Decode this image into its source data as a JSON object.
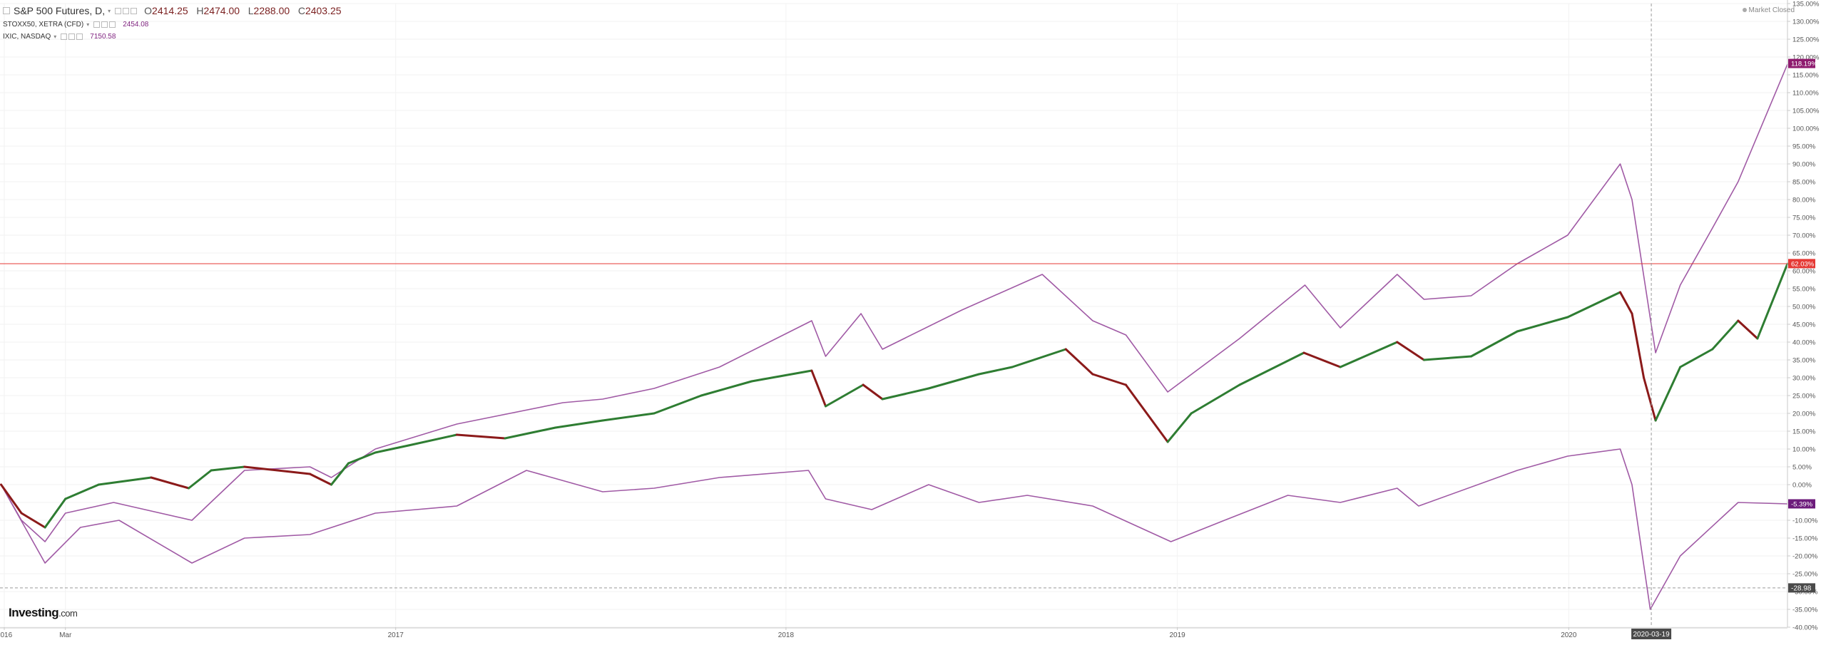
{
  "legend": {
    "main": {
      "symbol": "S&P 500 Futures, D,",
      "o_label": "O",
      "o": "2414.25",
      "h_label": "H",
      "h": "2474.00",
      "l_label": "L",
      "l": "2288.00",
      "c_label": "C",
      "c": "2403.25"
    },
    "compare": [
      {
        "symbol": "STOXX50, XETRA (CFD)",
        "value": "2454.08"
      },
      {
        "symbol": "IXIC, NASDAQ",
        "value": "7150.58"
      }
    ]
  },
  "market_status": "Market Closed",
  "logo": {
    "brand": "Investing",
    "suffix": ".com"
  },
  "crosshair": {
    "date_label": "2020-03-19",
    "value_label": "-28.98"
  },
  "colors": {
    "background": "#ffffff",
    "candle_up": "#2e7d32",
    "candle_down": "#8b1a1a",
    "compare_line": "#a05aa5",
    "price_line": "#e53935",
    "label_nasdaq": "#8e1a6e",
    "label_spx": "#e53935",
    "label_stoxx": "#6d1b7b",
    "crosshair": "#999999"
  },
  "chart_data": {
    "type": "line",
    "y_scale": "percent",
    "ylim": [
      -40,
      135
    ],
    "y_ticks": [
      135,
      130,
      125,
      120,
      115,
      110,
      105,
      100,
      95,
      90,
      85,
      80,
      75,
      70,
      65,
      60,
      55,
      50,
      45,
      40,
      35,
      30,
      25,
      20,
      15,
      10,
      5,
      0,
      -5,
      -10,
      -15,
      -20,
      -25,
      -30,
      -35,
      -40
    ],
    "x_ticks": [
      {
        "label": "2016",
        "date": "2016-01-04"
      },
      {
        "label": "Mar",
        "date": "2016-03-01"
      },
      {
        "label": "2017",
        "date": "2017-01-03"
      },
      {
        "label": "2018",
        "date": "2018-01-02"
      },
      {
        "label": "2019",
        "date": "2019-01-02"
      },
      {
        "label": "2020",
        "date": "2020-01-02"
      }
    ],
    "xlim": [
      "2015-12-31",
      "2020-07-24"
    ],
    "last_value_labels": [
      {
        "series": "IXIC, NASDAQ",
        "text": "118.19%",
        "value": 118.19
      },
      {
        "series": "S&P 500 Futures",
        "text": "62.03%",
        "value": 62.03
      },
      {
        "series": "STOXX50, XETRA (CFD)",
        "text": "-5.39%",
        "value": -5.39
      }
    ],
    "series": [
      {
        "name": "S&P 500 Futures",
        "style": "candlestick",
        "x": [
          "2016-01-01",
          "2016-01-20",
          "2016-02-11",
          "2016-03-01",
          "2016-04-01",
          "2016-05-20",
          "2016-06-24",
          "2016-07-15",
          "2016-08-15",
          "2016-09-15",
          "2016-10-15",
          "2016-11-04",
          "2016-11-20",
          "2016-12-15",
          "2017-01-15",
          "2017-03-01",
          "2017-04-15",
          "2017-06-01",
          "2017-07-15",
          "2017-09-01",
          "2017-10-15",
          "2017-12-01",
          "2018-01-26",
          "2018-02-08",
          "2018-03-15",
          "2018-04-02",
          "2018-05-15",
          "2018-07-01",
          "2018-08-01",
          "2018-09-20",
          "2018-10-15",
          "2018-11-15",
          "2018-12-24",
          "2019-01-15",
          "2019-03-01",
          "2019-04-30",
          "2019-06-03",
          "2019-07-26",
          "2019-08-20",
          "2019-10-03",
          "2019-11-15",
          "2020-01-01",
          "2020-02-19",
          "2020-03-01",
          "2020-03-12",
          "2020-03-23",
          "2020-04-15",
          "2020-05-15",
          "2020-06-08",
          "2020-06-26",
          "2020-07-24"
        ],
        "y": [
          0,
          -8,
          -12,
          -4,
          0,
          2,
          -1,
          4,
          5,
          4,
          3,
          0,
          6,
          9,
          11,
          14,
          13,
          16,
          18,
          20,
          25,
          29,
          32,
          22,
          28,
          24,
          27,
          31,
          33,
          38,
          31,
          28,
          12,
          20,
          28,
          37,
          33,
          40,
          35,
          36,
          43,
          47,
          54,
          48,
          30,
          18,
          33,
          38,
          46,
          41,
          62
        ]
      },
      {
        "name": "IXIC, NASDAQ",
        "style": "line",
        "x": [
          "2016-01-01",
          "2016-01-20",
          "2016-02-11",
          "2016-03-01",
          "2016-04-15",
          "2016-06-27",
          "2016-08-15",
          "2016-10-15",
          "2016-11-04",
          "2016-12-15",
          "2017-03-01",
          "2017-06-08",
          "2017-07-15",
          "2017-09-01",
          "2017-11-01",
          "2018-01-26",
          "2018-02-08",
          "2018-03-13",
          "2018-04-02",
          "2018-06-15",
          "2018-08-29",
          "2018-10-15",
          "2018-11-15",
          "2018-12-24",
          "2019-03-01",
          "2019-05-01",
          "2019-06-03",
          "2019-07-26",
          "2019-08-20",
          "2019-10-03",
          "2019-11-15",
          "2020-01-01",
          "2020-02-19",
          "2020-03-01",
          "2020-03-23",
          "2020-04-15",
          "2020-05-15",
          "2020-06-08",
          "2020-07-24"
        ],
        "y": [
          0,
          -10,
          -16,
          -8,
          -5,
          -10,
          4,
          5,
          2,
          10,
          17,
          23,
          24,
          27,
          33,
          46,
          36,
          48,
          38,
          49,
          59,
          46,
          42,
          26,
          41,
          56,
          44,
          59,
          52,
          53,
          62,
          70,
          90,
          80,
          37,
          56,
          72,
          85,
          118
        ]
      },
      {
        "name": "STOXX50, XETRA (CFD)",
        "style": "line",
        "x": [
          "2016-01-01",
          "2016-02-11",
          "2016-03-15",
          "2016-04-20",
          "2016-06-27",
          "2016-08-15",
          "2016-10-15",
          "2016-12-15",
          "2017-03-01",
          "2017-05-05",
          "2017-07-15",
          "2017-09-01",
          "2017-11-01",
          "2018-01-23",
          "2018-02-08",
          "2018-03-23",
          "2018-05-15",
          "2018-07-01",
          "2018-08-15",
          "2018-10-15",
          "2018-12-27",
          "2019-02-15",
          "2019-04-15",
          "2019-06-03",
          "2019-07-26",
          "2019-08-15",
          "2019-11-15",
          "2020-01-01",
          "2020-02-19",
          "2020-03-01",
          "2020-03-18",
          "2020-04-15",
          "2020-06-08",
          "2020-07-24"
        ],
        "y": [
          0,
          -22,
          -12,
          -10,
          -22,
          -15,
          -14,
          -8,
          -6,
          4,
          -2,
          -1,
          2,
          4,
          -4,
          -7,
          0,
          -5,
          -3,
          -6,
          -16,
          -10,
          -3,
          -5,
          -1,
          -6,
          4,
          8,
          10,
          0,
          -35,
          -20,
          -5,
          -5.39
        ]
      }
    ]
  }
}
